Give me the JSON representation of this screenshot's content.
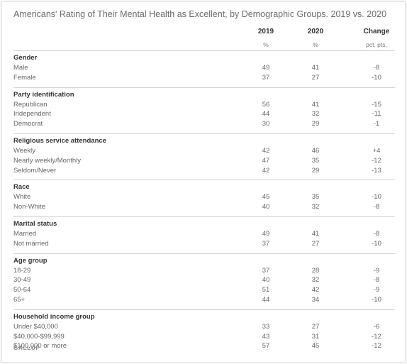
{
  "title": "Americans' Rating of Their Mental Health as Excellent, by Demographic Groups. 2019 vs. 2020",
  "source": "GALLUP",
  "chart_data": {
    "type": "table",
    "columns": [
      {
        "label": "2019",
        "sub": "%"
      },
      {
        "label": "2020",
        "sub": "%"
      },
      {
        "label": "Change",
        "sub": "pct. pts."
      }
    ],
    "groups": [
      {
        "name": "Gender",
        "rows": [
          {
            "label": "Male",
            "values": [
              "49",
              "41",
              "-8"
            ]
          },
          {
            "label": "Female",
            "values": [
              "37",
              "27",
              "-10"
            ]
          }
        ]
      },
      {
        "name": "Party identification",
        "rows": [
          {
            "label": "Republican",
            "values": [
              "56",
              "41",
              "-15"
            ]
          },
          {
            "label": "Independent",
            "values": [
              "44",
              "32",
              "-11"
            ]
          },
          {
            "label": "Democrat",
            "values": [
              "30",
              "29",
              "-1"
            ]
          }
        ]
      },
      {
        "name": "Religious service attendance",
        "rows": [
          {
            "label": "Weekly",
            "values": [
              "42",
              "46",
              "+4"
            ]
          },
          {
            "label": "Nearly weekly/Monthly",
            "values": [
              "47",
              "35",
              "-12"
            ]
          },
          {
            "label": "Seldom/Never",
            "values": [
              "42",
              "29",
              "-13"
            ]
          }
        ]
      },
      {
        "name": "Race",
        "rows": [
          {
            "label": "White",
            "values": [
              "45",
              "35",
              "-10"
            ]
          },
          {
            "label": "Non-White",
            "values": [
              "40",
              "32",
              "-8"
            ]
          }
        ]
      },
      {
        "name": "Marital status",
        "rows": [
          {
            "label": "Married",
            "values": [
              "49",
              "41",
              "-8"
            ]
          },
          {
            "label": "Not married",
            "values": [
              "37",
              "27",
              "-10"
            ]
          }
        ]
      },
      {
        "name": "Age group",
        "rows": [
          {
            "label": "18-29",
            "values": [
              "37",
              "28",
              "-9"
            ]
          },
          {
            "label": "30-49",
            "values": [
              "40",
              "32",
              "-8"
            ]
          },
          {
            "label": "50-64",
            "values": [
              "51",
              "42",
              "-9"
            ]
          },
          {
            "label": "65+",
            "values": [
              "44",
              "34",
              "-10"
            ]
          }
        ]
      },
      {
        "name": "Household income group",
        "rows": [
          {
            "label": "Under $40,000",
            "values": [
              "33",
              "27",
              "-6"
            ]
          },
          {
            "label": "$40,000-$99,999",
            "values": [
              "43",
              "31",
              "-12"
            ]
          },
          {
            "label": "$100,000 or more",
            "values": [
              "57",
              "45",
              "-12"
            ]
          }
        ]
      }
    ]
  }
}
